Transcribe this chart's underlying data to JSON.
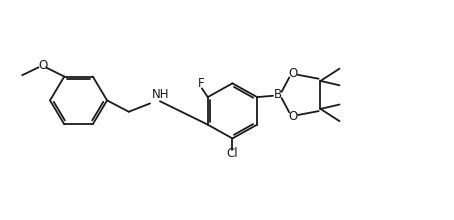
{
  "bg_color": "#ffffff",
  "line_color": "#1a1a1a",
  "line_width": 1.3,
  "font_size": 8.5,
  "xlim": [
    0,
    10
  ],
  "ylim": [
    0,
    5
  ],
  "figsize": [
    4.54,
    2.2
  ],
  "dpi": 100
}
